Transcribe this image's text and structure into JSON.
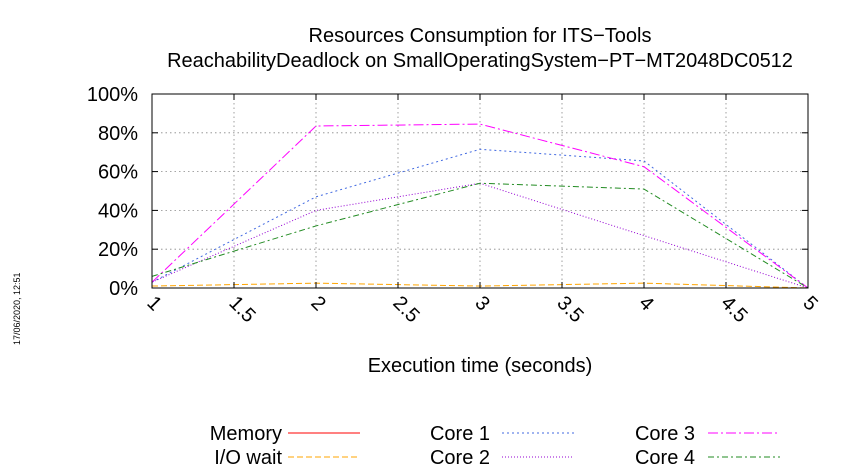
{
  "chart_data": {
    "type": "line",
    "title": "Resources Consumption for ITS−Tools",
    "subtitle": "ReachabilityDeadlock on SmallOperatingSystem−PT−MT2048DC0512",
    "xlabel": "Execution time (seconds)",
    "ylabel": "",
    "xlim": [
      1,
      5
    ],
    "ylim": [
      0,
      100
    ],
    "x_ticks": [
      "1",
      "1.5",
      "2",
      "2.5",
      "3",
      "3.5",
      "4",
      "4.5",
      "5"
    ],
    "y_ticks": [
      "0%",
      "20%",
      "40%",
      "60%",
      "80%",
      "100%"
    ],
    "grid": true,
    "legend_position": "bottom",
    "x": [
      1,
      2,
      3,
      4,
      5
    ],
    "series": [
      {
        "name": "Memory",
        "color": "#ff0000",
        "dash": "",
        "values": [
          0,
          0,
          0,
          0,
          0
        ]
      },
      {
        "name": "I/O wait",
        "color": "#ffa500",
        "dash": "6 3",
        "values": [
          1,
          2.5,
          1,
          2.5,
          0
        ]
      },
      {
        "name": "Core 1",
        "color": "#4169e1",
        "dash": "2 3",
        "values": [
          3,
          47,
          71.5,
          65.5,
          0
        ]
      },
      {
        "name": "Core 2",
        "color": "#9400d3",
        "dash": "1 2",
        "values": [
          3,
          40,
          54,
          27,
          0
        ]
      },
      {
        "name": "Core 3",
        "color": "#ff00ff",
        "dash": "10 3 2 3",
        "values": [
          3,
          83.5,
          84.5,
          62.5,
          0
        ]
      },
      {
        "name": "Core 4",
        "color": "#228b22",
        "dash": "6 3 2 3",
        "values": [
          6,
          32,
          54,
          51,
          0
        ]
      }
    ]
  },
  "timestamp": "17/06/2020, 12:51"
}
